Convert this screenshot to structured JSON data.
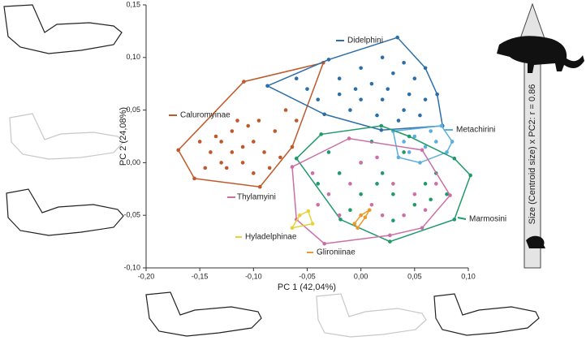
{
  "chart_data": {
    "type": "scatter",
    "xlabel": "PC 1 (42,04%)",
    "ylabel": "PC 2 (24,08%)",
    "annotation": "Size (Centroid size) x PC2:  r = 0.86",
    "xlim": [
      -0.2,
      0.1
    ],
    "ylim": [
      -0.1,
      0.15
    ],
    "xticks": [
      {
        "value": -0.2,
        "label": "-0,20"
      },
      {
        "value": -0.15,
        "label": "-0,15"
      },
      {
        "value": -0.1,
        "label": "-0,10"
      },
      {
        "value": -0.05,
        "label": "-0,05"
      },
      {
        "value": 0,
        "label": "0,00"
      },
      {
        "value": 0.05,
        "label": "0,05"
      },
      {
        "value": 0.1,
        "label": "0,10"
      }
    ],
    "yticks": [
      {
        "value": -0.1,
        "label": "-0,10"
      },
      {
        "value": -0.05,
        "label": "-0,05"
      },
      {
        "value": 0,
        "label": "0,00"
      },
      {
        "value": 0.05,
        "label": "0,05"
      },
      {
        "value": 0.1,
        "label": "0,10"
      },
      {
        "value": 0.15,
        "label": "0,15"
      }
    ],
    "grid": false,
    "convex_hulls": true,
    "series": [
      {
        "name": "Caluromyinae",
        "color": "#c0582a",
        "x": [
          -0.17,
          -0.109,
          -0.035,
          -0.064,
          -0.094,
          -0.155,
          -0.14,
          -0.13,
          -0.12,
          -0.11,
          -0.1,
          -0.09,
          -0.125,
          -0.115,
          -0.105,
          -0.135,
          -0.08,
          -0.095,
          -0.145,
          -0.12,
          -0.1,
          -0.085,
          -0.13,
          -0.11,
          -0.075,
          -0.07,
          -0.15,
          -0.06
        ],
        "values": [
          0.012,
          0.077,
          0.095,
          0.015,
          -0.023,
          -0.015,
          0.01,
          0.02,
          0.03,
          0.0,
          0.02,
          0.01,
          -0.005,
          0.04,
          0.035,
          0.025,
          0.03,
          0.04,
          -0.005,
          0.01,
          -0.01,
          -0.005,
          0.0,
          0.015,
          0.005,
          0.05,
          0.02,
          0.04
        ]
      },
      {
        "name": "Didelphini",
        "color": "#2b6ea8",
        "x": [
          -0.087,
          -0.03,
          0.034,
          0.071,
          0.076,
          0.019,
          -0.034,
          -0.05,
          -0.02,
          0.0,
          0.02,
          0.03,
          0.05,
          0.06,
          0.04,
          0.02,
          0.0,
          -0.01,
          -0.02,
          0.01,
          0.045,
          0.055,
          0.035,
          -0.04,
          0.015,
          -0.005,
          0.025,
          0.04,
          -0.06,
          0.06
        ],
        "values": [
          0.073,
          0.098,
          0.119,
          0.065,
          0.035,
          0.031,
          0.046,
          0.07,
          0.08,
          0.09,
          0.1,
          0.085,
          0.08,
          0.06,
          0.05,
          0.06,
          0.06,
          0.05,
          0.065,
          0.075,
          0.065,
          0.045,
          0.04,
          0.06,
          0.045,
          0.07,
          0.07,
          0.095,
          0.08,
          0.09
        ]
      },
      {
        "name": "Metachirini",
        "color": "#5aaee0",
        "x": [
          0.03,
          0.04,
          0.05,
          0.06,
          0.07,
          0.08,
          0.055,
          0.045,
          0.065,
          0.035,
          0.075,
          0.085
        ],
        "values": [
          0.03,
          0.02,
          0.025,
          0.015,
          0.02,
          0.01,
          0.0,
          0.01,
          0.03,
          0.005,
          0.035,
          0.02
        ]
      },
      {
        "name": "Marmosini",
        "color": "#1f9a6a",
        "x": [
          -0.06,
          -0.037,
          0.019,
          0.087,
          0.102,
          0.087,
          0.027,
          -0.019,
          0.0,
          0.02,
          0.04,
          0.06,
          0.03,
          0.0,
          -0.02,
          -0.04,
          0.05,
          0.07,
          0.01,
          0.045,
          -0.01,
          0.03,
          0.065,
          -0.03,
          0.08,
          0.015
        ],
        "values": [
          0.004,
          0.027,
          0.035,
          0.004,
          -0.012,
          -0.054,
          -0.075,
          -0.054,
          0.0,
          -0.01,
          0.01,
          -0.02,
          -0.03,
          -0.03,
          -0.01,
          -0.02,
          -0.04,
          -0.01,
          0.02,
          0.025,
          -0.045,
          -0.055,
          -0.035,
          0.01,
          -0.03,
          -0.02
        ]
      },
      {
        "name": "Thylamyini",
        "color": "#cc6fa8",
        "x": [
          -0.064,
          -0.011,
          0.057,
          0.083,
          0.057,
          0.027,
          -0.034,
          -0.06,
          -0.03,
          -0.01,
          0.01,
          0.03,
          0.05,
          0.02,
          -0.02,
          0.0,
          0.04,
          -0.04,
          0.06,
          0.015,
          -0.045,
          0.07
        ],
        "values": [
          -0.004,
          0.023,
          0.012,
          -0.031,
          -0.062,
          -0.069,
          -0.077,
          -0.054,
          -0.03,
          -0.02,
          -0.04,
          -0.02,
          -0.03,
          -0.05,
          -0.05,
          0.0,
          -0.05,
          -0.04,
          -0.045,
          0.005,
          -0.01,
          -0.02
        ]
      },
      {
        "name": "Hyladelphinae",
        "color": "#e8d23a",
        "x": [
          -0.057,
          -0.049,
          -0.045,
          -0.064
        ],
        "values": [
          -0.05,
          -0.046,
          -0.058,
          -0.062
        ]
      },
      {
        "name": "Glironiinae",
        "color": "#e89a2a",
        "x": [
          -0.003,
          0.0,
          0.004,
          0.008,
          -0.006
        ],
        "values": [
          -0.062,
          -0.05,
          -0.052,
          -0.045,
          -0.058
        ]
      }
    ]
  }
}
